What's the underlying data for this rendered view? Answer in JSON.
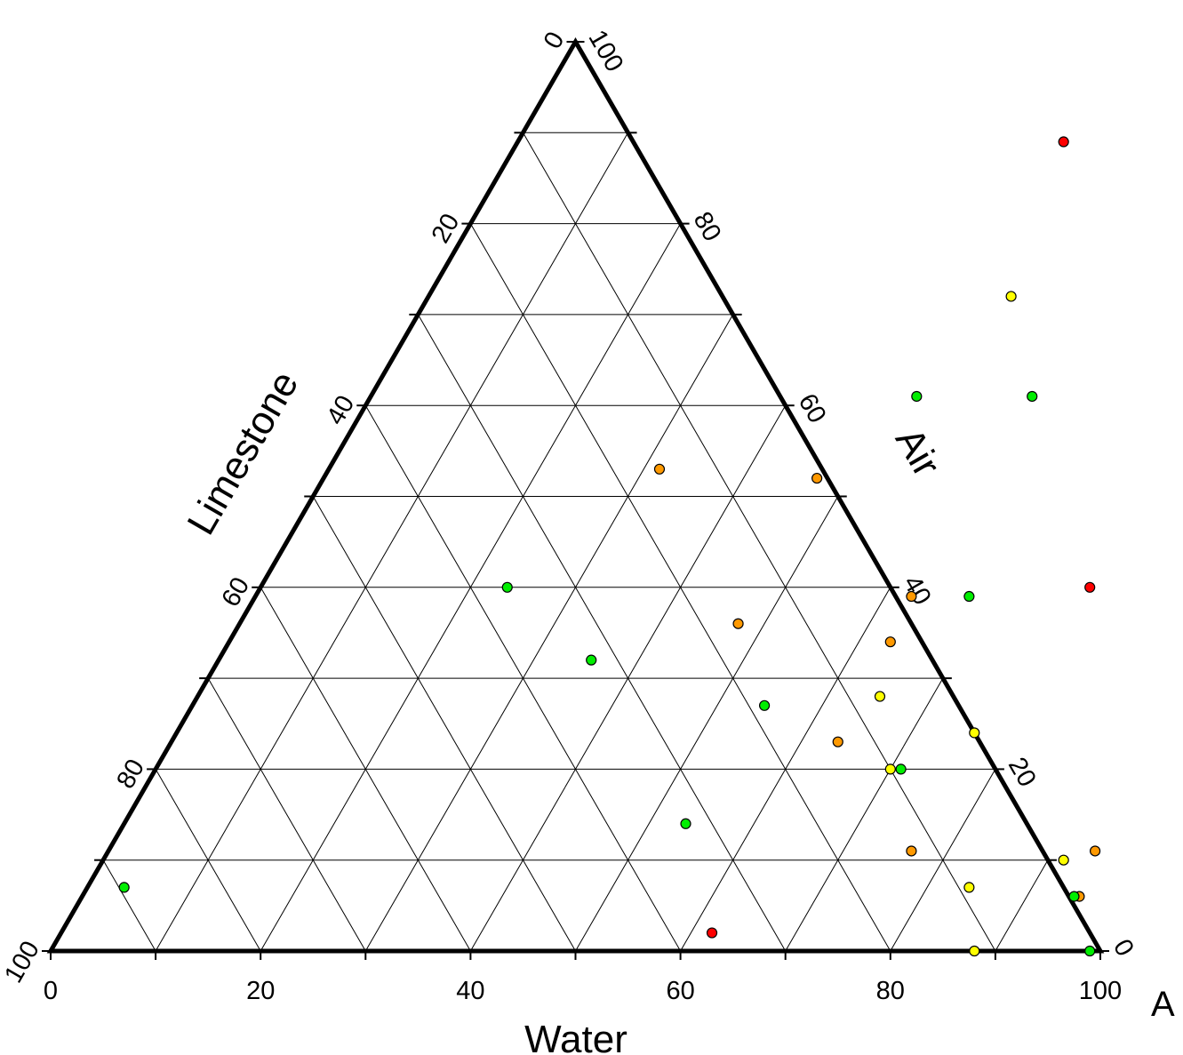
{
  "chart_data": {
    "type": "scatter",
    "subtype": "ternary",
    "axes": {
      "bottom": {
        "label": "Water",
        "ticks": [
          "0",
          "20",
          "40",
          "60",
          "80",
          "100"
        ]
      },
      "left": {
        "label": "Limestone",
        "ticks": [
          "0",
          "20",
          "40",
          "60",
          "80",
          "100"
        ]
      },
      "right": {
        "label": "Air",
        "ticks": [
          "100",
          "80",
          "60",
          "40",
          "20",
          "0"
        ]
      }
    },
    "corner_label": "A",
    "grid": true,
    "grid_interval": 10,
    "colors": {
      "red": "#ff0000",
      "orange": "#ff9900",
      "yellow": "#ffff00",
      "green": "#00ee00"
    },
    "points": [
      {
        "water": 52,
        "air": 89,
        "color": "red"
      },
      {
        "water": 55.5,
        "air": 72,
        "color": "yellow"
      },
      {
        "water": 52,
        "air": 61,
        "color": "green"
      },
      {
        "water": 63,
        "air": 61,
        "color": "green"
      },
      {
        "water": 31.5,
        "air": 53,
        "color": "orange"
      },
      {
        "water": 47,
        "air": 52,
        "color": "orange"
      },
      {
        "water": 23.5,
        "air": 40,
        "color": "green"
      },
      {
        "water": 79,
        "air": 40,
        "color": "red"
      },
      {
        "water": 62.5,
        "air": 39,
        "color": "orange"
      },
      {
        "water": 68,
        "air": 39,
        "color": "green"
      },
      {
        "water": 47.5,
        "air": 36,
        "color": "orange"
      },
      {
        "water": 63,
        "air": 34,
        "color": "orange"
      },
      {
        "water": 35.5,
        "air": 32,
        "color": "green"
      },
      {
        "water": 65,
        "air": 28,
        "color": "yellow"
      },
      {
        "water": 54.5,
        "air": 27,
        "color": "green"
      },
      {
        "water": 76,
        "air": 24,
        "color": "yellow"
      },
      {
        "water": 63.5,
        "air": 23,
        "color": "orange"
      },
      {
        "water": 70,
        "air": 20,
        "color": "yellow"
      },
      {
        "water": 71,
        "air": 20,
        "color": "green"
      },
      {
        "water": 53.5,
        "air": 14,
        "color": "green"
      },
      {
        "water": 76.5,
        "air": 11,
        "color": "orange"
      },
      {
        "water": 94,
        "air": 11,
        "color": "orange"
      },
      {
        "water": 91.5,
        "air": 10,
        "color": "yellow"
      },
      {
        "water": 84,
        "air": 7,
        "color": "yellow"
      },
      {
        "water": 95,
        "air": 6,
        "color": "orange"
      },
      {
        "water": 94.5,
        "air": 6,
        "color": "green"
      },
      {
        "water": 3.5,
        "air": 7,
        "color": "green"
      },
      {
        "water": 62,
        "air": 2,
        "color": "red"
      },
      {
        "water": 88,
        "air": 0,
        "color": "yellow"
      },
      {
        "water": 99,
        "air": 0,
        "color": "green"
      }
    ]
  }
}
